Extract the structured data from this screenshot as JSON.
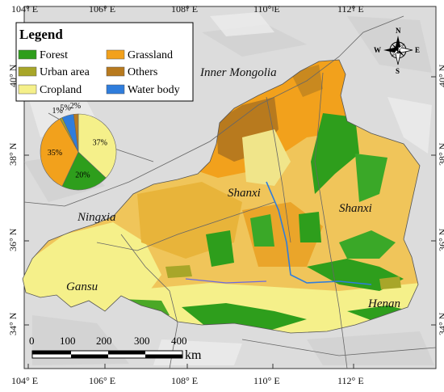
{
  "legend": {
    "title": "Legend",
    "items": [
      {
        "label": "Forest",
        "color": "#2e9e1c"
      },
      {
        "label": "Grassland",
        "color": "#f2a11c"
      },
      {
        "label": "Urban area",
        "color": "#a8a629"
      },
      {
        "label": "Others",
        "color": "#b87a1e"
      },
      {
        "label": "Cropland",
        "color": "#f5f08a"
      },
      {
        "label": "Water body",
        "color": "#2f7ddc"
      }
    ]
  },
  "pie": {
    "slices": [
      {
        "class": "Cropland",
        "percent": 37,
        "label": "37%",
        "color": "#f5f08a"
      },
      {
        "class": "Forest",
        "percent": 20,
        "label": "20%",
        "color": "#2e9e1c"
      },
      {
        "class": "Grassland",
        "percent": 35,
        "label": "35%",
        "color": "#f2a11c"
      },
      {
        "class": "Urban area",
        "percent": 1,
        "label": "1%",
        "color": "#a8a629"
      },
      {
        "class": "Water body",
        "percent": 5,
        "label": "5%",
        "color": "#2f7ddc"
      },
      {
        "class": "Others",
        "percent": 2,
        "label": "2%",
        "color": "#b87a1e"
      }
    ]
  },
  "places": [
    "Inner Mongolia",
    "Shanxi",
    "Shanxi",
    "Ningxia",
    "Gansu",
    "Henan"
  ],
  "lon_ticks": [
    "104° E",
    "106° E",
    "108° E",
    "110° E",
    "112° E"
  ],
  "lat_ticks": [
    "40° N",
    "38° N",
    "36° N",
    "34° N"
  ],
  "scale_bar": {
    "ticks": [
      "0",
      "100",
      "200",
      "300",
      "400"
    ],
    "unit": "km"
  },
  "compass": {
    "n": "N",
    "e": "E",
    "s": "S",
    "w": "W"
  }
}
